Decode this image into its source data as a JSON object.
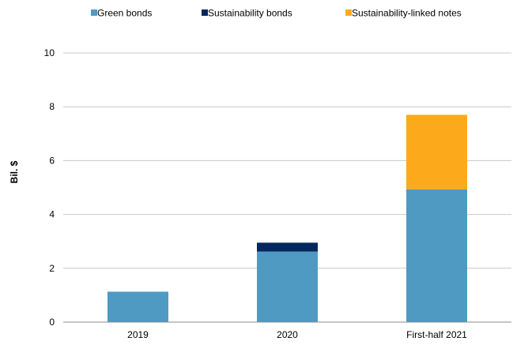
{
  "chart_data": {
    "type": "bar",
    "stacked": true,
    "title": "",
    "xlabel": "",
    "ylabel": "Bil. $",
    "categories": [
      "2019",
      "2020",
      "First-half 2021"
    ],
    "series": [
      {
        "name": "Green bonds",
        "color": "#4f9ac3",
        "values": [
          1.13,
          2.62,
          4.93
        ]
      },
      {
        "name": "Sustainability bonds",
        "color": "#00285e",
        "values": [
          0,
          0.33,
          0
        ]
      },
      {
        "name": "Sustainability-linked notes",
        "color": "#fcaa1b",
        "values": [
          0,
          0,
          2.77
        ]
      }
    ],
    "ylim": [
      0,
      10
    ],
    "yticks": [
      0,
      2,
      4,
      6,
      8,
      10
    ],
    "grid": true,
    "legend_position": "top"
  }
}
